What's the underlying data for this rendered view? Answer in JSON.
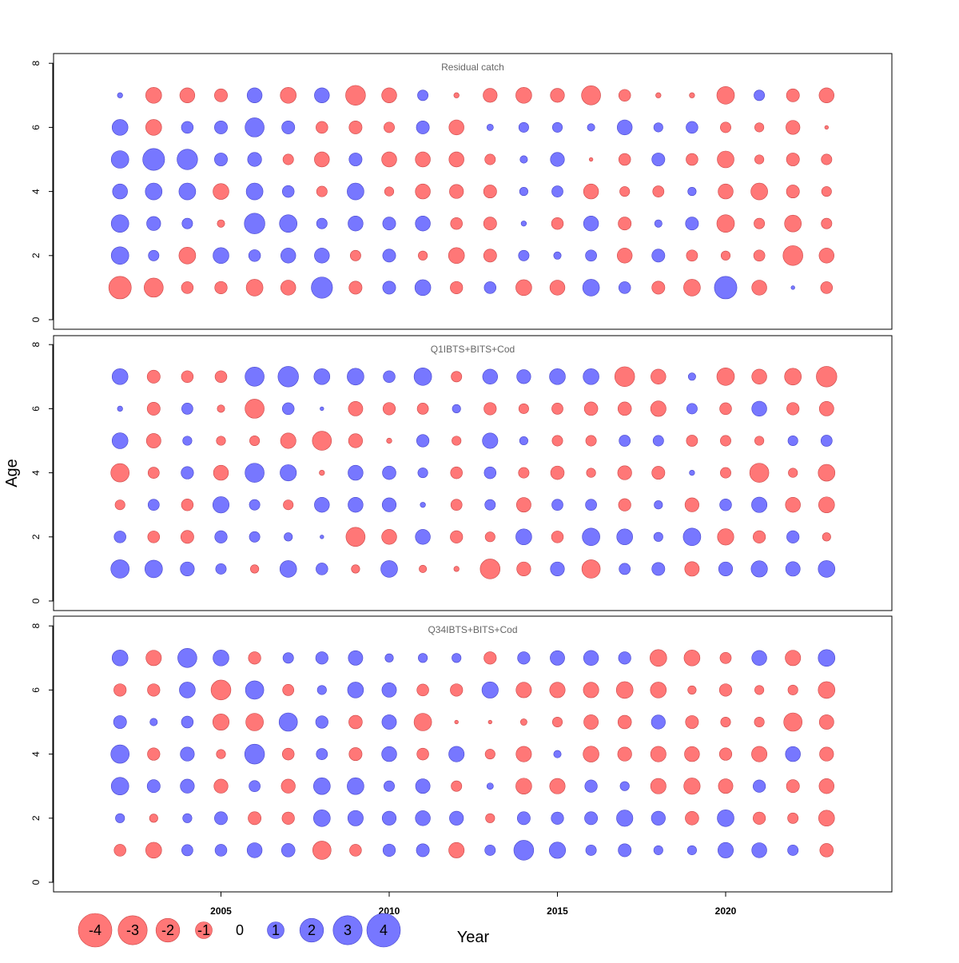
{
  "chart_data": {
    "type": "bubble",
    "xlabel": "Year",
    "ylabel": "Age",
    "ylim": [
      0,
      8
    ],
    "yticks": [
      0,
      2,
      4,
      6,
      8
    ],
    "xticks": [
      2005,
      2010,
      2015,
      2020
    ],
    "years": [
      2002,
      2003,
      2004,
      2005,
      2006,
      2007,
      2008,
      2009,
      2010,
      2011,
      2012,
      2013,
      2014,
      2015,
      2016,
      2017,
      2018,
      2019,
      2020,
      2021,
      2022,
      2023
    ],
    "ages": [
      1,
      2,
      3,
      4,
      5,
      6,
      7
    ],
    "colors": {
      "positive": "#7777ff",
      "negative": "#ff7777",
      "positive_stroke": "#4444cc",
      "negative_stroke": "#cc4444"
    },
    "panels": [
      {
        "title": "Residual catch",
        "residuals": {
          "7": [
            0.1,
            -0.9,
            -0.8,
            -0.6,
            0.8,
            -0.9,
            0.8,
            -1.4,
            -0.8,
            0.4,
            -0.1,
            -0.7,
            -0.9,
            -0.7,
            -1.3,
            -0.5,
            -0.1,
            -0.1,
            -1.1,
            0.4,
            -0.6,
            -0.8
          ],
          "6": [
            0.9,
            -0.9,
            0.5,
            0.6,
            1.3,
            0.6,
            -0.5,
            -0.6,
            -0.4,
            0.6,
            -0.8,
            0.15,
            0.35,
            0.35,
            0.2,
            0.8,
            0.3,
            0.5,
            -0.4,
            -0.3,
            -0.7,
            -0.05
          ],
          "5": [
            1.1,
            1.7,
            1.5,
            0.6,
            0.7,
            -0.4,
            -0.8,
            0.6,
            -0.8,
            -0.8,
            -0.8,
            -0.4,
            0.2,
            0.7,
            -0.05,
            -0.5,
            0.6,
            -0.5,
            -1.0,
            -0.3,
            -0.6,
            -0.4
          ],
          "4": [
            0.8,
            1.0,
            1.0,
            -0.9,
            1.0,
            0.5,
            -0.4,
            1.0,
            -0.3,
            -0.8,
            -0.7,
            -0.6,
            0.25,
            0.45,
            -0.8,
            -0.35,
            -0.45,
            0.25,
            -0.8,
            -1.0,
            -0.6,
            -0.35
          ],
          "3": [
            1.1,
            0.7,
            0.4,
            -0.2,
            1.5,
            1.1,
            0.4,
            0.8,
            0.6,
            0.8,
            -0.5,
            -0.6,
            0.1,
            -0.5,
            0.8,
            -0.6,
            0.2,
            0.6,
            -1.1,
            -0.4,
            -1.0,
            -0.4
          ],
          "2": [
            1.1,
            0.4,
            -1.0,
            0.9,
            0.5,
            0.8,
            0.8,
            -0.4,
            0.6,
            -0.3,
            -0.9,
            -0.6,
            0.4,
            0.2,
            0.45,
            -0.8,
            0.6,
            -0.45,
            -0.3,
            -0.45,
            -1.4,
            -0.8
          ],
          "1": [
            -1.8,
            -1.3,
            -0.5,
            -0.55,
            -1.0,
            -0.8,
            1.6,
            -0.6,
            0.6,
            0.9,
            -0.55,
            0.5,
            -0.9,
            -0.8,
            1.0,
            0.5,
            -0.6,
            -1.0,
            1.8,
            -0.8,
            0.05,
            -0.5
          ]
        }
      },
      {
        "title": "Q1IBTS+BITS+Cod",
        "residuals": {
          "7": [
            0.9,
            -0.6,
            -0.5,
            -0.5,
            1.3,
            1.5,
            0.9,
            1.0,
            0.5,
            1.1,
            -0.4,
            0.8,
            0.7,
            0.9,
            0.9,
            -1.4,
            -0.8,
            0.2,
            -1.1,
            -0.8,
            -1.0,
            -1.5
          ],
          "6": [
            0.1,
            -0.6,
            0.45,
            -0.2,
            -1.3,
            0.5,
            0.05,
            -0.75,
            -0.55,
            -0.45,
            0.25,
            -0.55,
            -0.35,
            -0.45,
            -0.65,
            -0.65,
            -0.85,
            0.4,
            -0.5,
            0.8,
            -0.55,
            -0.75
          ],
          "5": [
            0.9,
            -0.75,
            0.3,
            -0.3,
            -0.35,
            -0.85,
            -1.3,
            -0.7,
            -0.1,
            0.55,
            -0.3,
            0.85,
            0.25,
            -0.4,
            -0.4,
            0.45,
            0.4,
            -0.45,
            -0.4,
            -0.3,
            0.35,
            0.45
          ],
          "4": [
            -1.2,
            -0.45,
            0.55,
            -0.8,
            1.3,
            0.95,
            -0.1,
            0.8,
            0.65,
            0.35,
            -0.5,
            0.5,
            -0.4,
            -0.65,
            -0.3,
            -0.7,
            -0.6,
            0.1,
            -0.4,
            -1.3,
            -0.3,
            -1.0
          ],
          "3": [
            -0.35,
            0.45,
            -0.5,
            0.95,
            0.4,
            -0.35,
            0.8,
            0.8,
            0.7,
            0.1,
            -0.45,
            0.4,
            -0.75,
            0.45,
            0.45,
            -0.55,
            0.25,
            -0.7,
            0.5,
            0.85,
            -0.8,
            -0.9
          ],
          "2": [
            0.5,
            -0.5,
            -0.6,
            0.55,
            0.4,
            0.25,
            0.05,
            -1.3,
            -0.8,
            0.8,
            -0.55,
            -0.35,
            0.9,
            -0.5,
            1.1,
            0.9,
            0.3,
            1.1,
            -0.95,
            -0.55,
            0.55,
            -0.25
          ],
          "1": [
            1.2,
            1.1,
            0.7,
            0.4,
            -0.25,
            1.0,
            0.5,
            -0.25,
            1.0,
            -0.2,
            -0.1,
            -1.4,
            -0.7,
            0.7,
            -1.2,
            0.45,
            0.6,
            -0.75,
            0.7,
            0.95,
            0.75,
            1.0
          ]
        }
      },
      {
        "title": "Q34IBTS+BITS+Cod",
        "residuals": {
          "7": [
            0.9,
            -0.85,
            1.3,
            0.9,
            -0.55,
            0.4,
            0.55,
            0.75,
            0.25,
            0.3,
            0.3,
            -0.55,
            0.55,
            0.75,
            0.8,
            0.55,
            -1.0,
            -0.9,
            -0.45,
            0.8,
            -0.85,
            1.0
          ],
          "6": [
            -0.55,
            -0.55,
            0.9,
            -1.4,
            1.2,
            -0.45,
            0.3,
            0.9,
            0.75,
            -0.5,
            -0.55,
            0.95,
            -0.85,
            -0.85,
            -0.85,
            -1.0,
            -0.9,
            -0.25,
            -0.55,
            -0.3,
            -0.35,
            -1.0
          ],
          "5": [
            0.6,
            0.2,
            0.5,
            -0.95,
            -1.1,
            1.2,
            0.55,
            -0.65,
            0.75,
            -1.1,
            -0.05,
            -0.05,
            -0.15,
            -0.35,
            -0.75,
            -0.65,
            0.7,
            -0.6,
            -0.35,
            -0.35,
            -1.2,
            -0.75
          ],
          "4": [
            1.2,
            -0.55,
            0.7,
            -0.3,
            1.4,
            -0.5,
            0.45,
            -0.6,
            0.8,
            -0.5,
            0.85,
            -0.35,
            -0.85,
            0.2,
            -0.9,
            -0.7,
            -0.85,
            -0.8,
            -0.55,
            -0.85,
            0.8,
            -0.7
          ],
          "3": [
            1.1,
            0.6,
            0.7,
            -0.7,
            0.45,
            -0.7,
            1.0,
            1.0,
            0.4,
            0.75,
            -0.4,
            0.15,
            -0.9,
            -0.85,
            0.55,
            0.3,
            -0.85,
            -0.95,
            -0.75,
            0.55,
            -0.6,
            -0.8
          ],
          "2": [
            0.3,
            -0.25,
            0.3,
            0.6,
            -0.6,
            -0.55,
            1.0,
            0.85,
            0.7,
            0.8,
            0.7,
            -0.3,
            0.6,
            0.55,
            0.6,
            0.95,
            0.7,
            -0.65,
            1.0,
            -0.55,
            -0.4,
            -0.9
          ],
          "1": [
            -0.5,
            -0.9,
            0.45,
            0.5,
            0.8,
            0.65,
            -1.2,
            -0.5,
            0.55,
            0.6,
            -0.85,
            0.4,
            1.4,
            0.95,
            0.4,
            0.6,
            0.3,
            0.3,
            0.85,
            0.8,
            0.4,
            -0.65
          ]
        }
      }
    ],
    "legend": {
      "items": [
        {
          "value": -4,
          "label": "-4"
        },
        {
          "value": -3,
          "label": "-3"
        },
        {
          "value": -2,
          "label": "-2"
        },
        {
          "value": -1,
          "label": "-1"
        },
        {
          "value": 0,
          "label": "0"
        },
        {
          "value": 1,
          "label": "1"
        },
        {
          "value": 2,
          "label": "2"
        },
        {
          "value": 3,
          "label": "3"
        },
        {
          "value": 4,
          "label": "4"
        }
      ]
    }
  }
}
